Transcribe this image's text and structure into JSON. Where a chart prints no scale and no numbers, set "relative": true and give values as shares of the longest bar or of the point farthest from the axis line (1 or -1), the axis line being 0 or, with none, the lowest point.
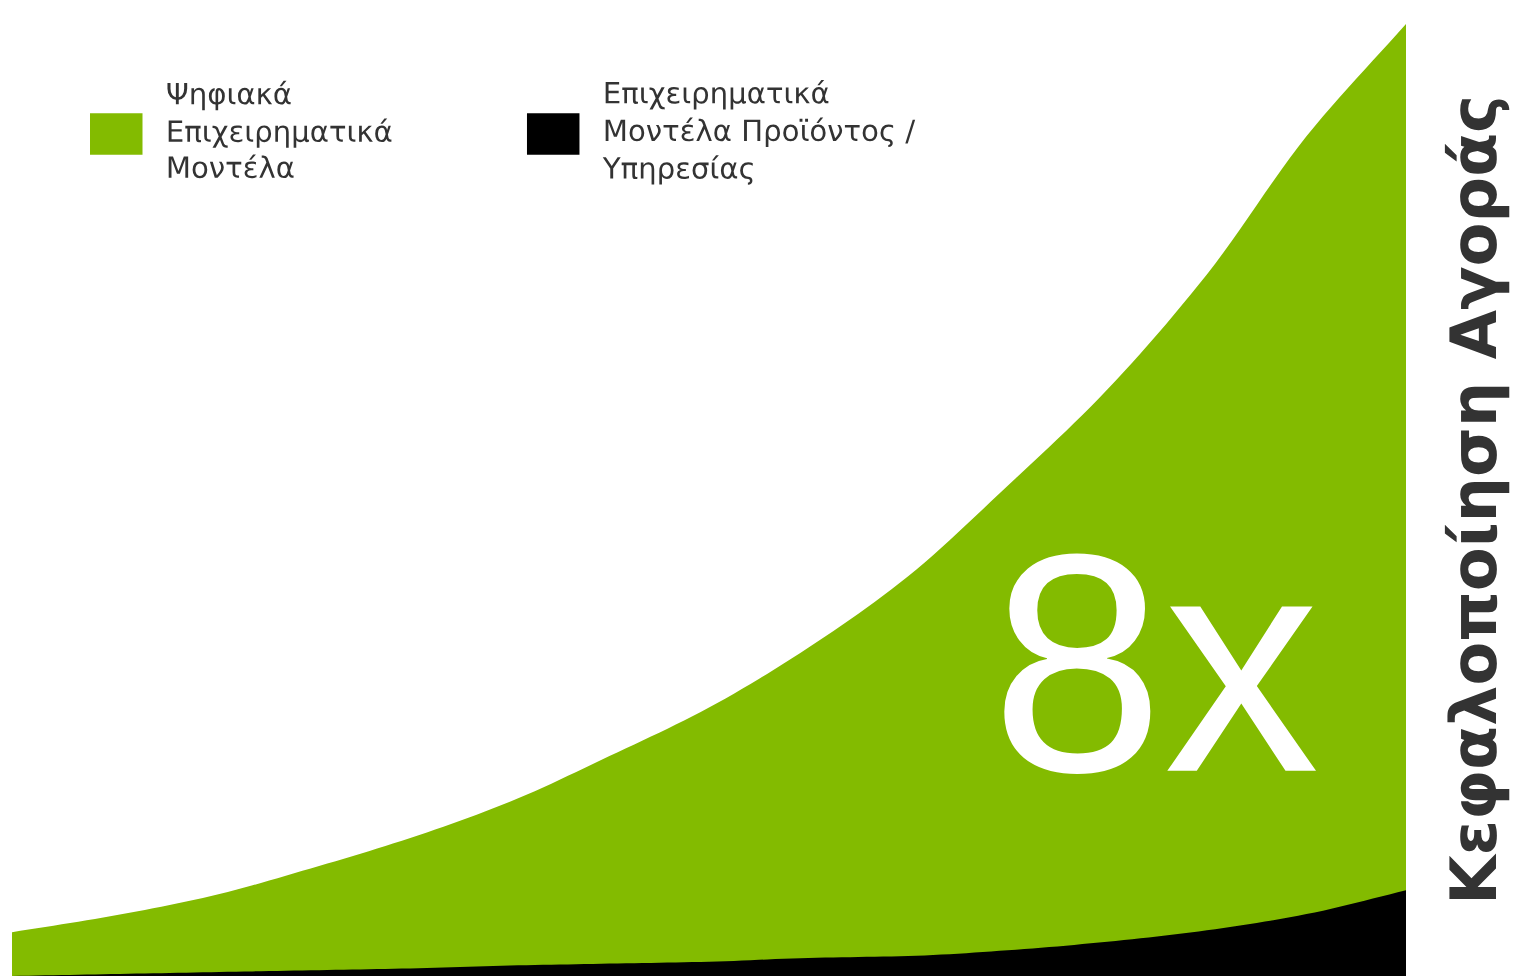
{
  "chart_data": {
    "type": "area",
    "relative": true,
    "legend": "top left",
    "ylabel": "Κεφαλοποίηση Αγοράς",
    "annotations": [
      "8x"
    ],
    "categories": [
      null,
      null,
      null,
      null,
      null,
      null,
      null,
      null,
      null,
      null,
      null,
      null,
      null,
      null,
      null
    ],
    "series": [
      {
        "name": "Ψηφιακά\nΕπιχειρηματικά\nΜοντέλα",
        "color": "#83bb00",
        "values": [
          0.046,
          0.063,
          0.084,
          0.113,
          0.145,
          0.183,
          0.231,
          0.282,
          0.345,
          0.42,
          0.515,
          0.616,
          0.737,
          0.882,
          1.0
        ]
      },
      {
        "name": "Επιχειρηματικά\nΜοντέλα Προϊόντος /\nΥπηρεσίας",
        "color": "#000000",
        "values": [
          0.0,
          0.002,
          0.004,
          0.006,
          0.008,
          0.011,
          0.013,
          0.015,
          0.019,
          0.021,
          0.027,
          0.036,
          0.048,
          0.065,
          0.09
        ]
      }
    ]
  }
}
